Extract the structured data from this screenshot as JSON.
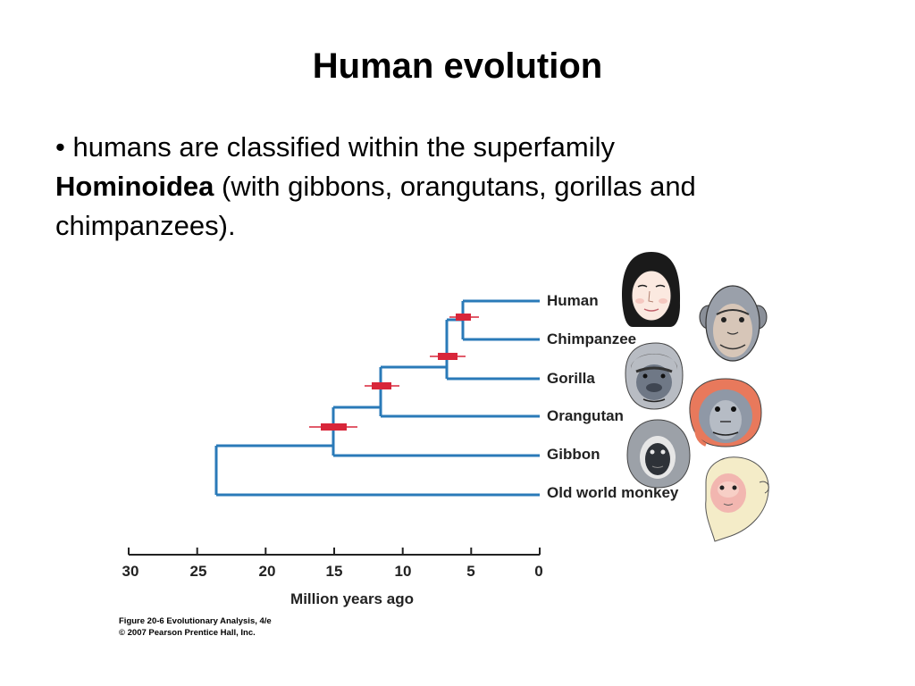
{
  "slide": {
    "title": "Human evolution",
    "bullet": {
      "marker": "•",
      "intro": "humans are classified within the superfamily",
      "bold": "Hominoidea",
      "rest": "(with gibbons, orangutans, gorillas and chimpanzees)."
    }
  },
  "figure": {
    "axis_label": "Million years ago",
    "ticks": [
      "30",
      "25",
      "20",
      "15",
      "10",
      "5",
      "0"
    ],
    "taxa": [
      "Human",
      "Chimpanzee",
      "Gorilla",
      "Orangutan",
      "Gibbon",
      "Old world monkey"
    ],
    "icons": [
      "human-face-icon",
      "chimpanzee-face-icon",
      "gorilla-face-icon",
      "orangutan-face-icon",
      "gibbon-face-icon",
      "monkey-face-icon"
    ],
    "colors": {
      "branch": "#2a7ab8",
      "divergence_marker": "#d8263a"
    },
    "divergence_myr": {
      "human_chimp": 5.5,
      "gorilla": 6.7,
      "orangutan": 11.7,
      "gibbon": 15.2,
      "old_world_monkey": 23.6
    },
    "caption_line1": "Figure 20-6  Evolutionary Analysis, 4/e",
    "caption_line2": "© 2007 Pearson Prentice Hall, Inc."
  }
}
